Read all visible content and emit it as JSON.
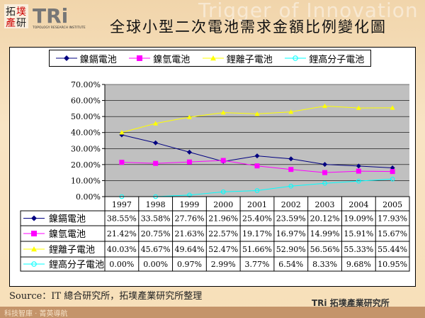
{
  "header": {
    "logo_text": "拓墣產研 TRi TOPOLOGY RESEARCH INSTITUTE",
    "watermark": "Trigger of Innovation",
    "title": "全球小型二次電池需求金額比例變化圖"
  },
  "chart_data": {
    "type": "line",
    "title": "全球小型二次電池需求金額比例變化圖",
    "categories": [
      "1997",
      "1998",
      "1999",
      "2000",
      "2001",
      "2002",
      "2003",
      "2004",
      "2005"
    ],
    "ylim": [
      0,
      70
    ],
    "yticks": [
      "0.00%",
      "10.00%",
      "20.00%",
      "30.00%",
      "40.00%",
      "50.00%",
      "60.00%",
      "70.00%"
    ],
    "grid": true,
    "legend": "top",
    "plot_background": "#c0c0c0",
    "series": [
      {
        "name": "鎳鎘電池",
        "color": "#000080",
        "marker": "diamond",
        "values": [
          38.55,
          33.58,
          27.76,
          21.96,
          25.4,
          23.59,
          20.12,
          19.09,
          17.93
        ],
        "labels": [
          "38.55%",
          "33.58%",
          "27.76%",
          "21.96%",
          "25.40%",
          "23.59%",
          "20.12%",
          "19.09%",
          "17.93%"
        ]
      },
      {
        "name": "鎳氫電池",
        "color": "#ff00ff",
        "marker": "square",
        "values": [
          21.42,
          20.75,
          21.63,
          22.57,
          19.17,
          16.97,
          14.99,
          15.91,
          15.67
        ],
        "labels": [
          "21.42%",
          "20.75%",
          "21.63%",
          "22.57%",
          "19.17%",
          "16.97%",
          "14.99%",
          "15.91%",
          "15.67%"
        ]
      },
      {
        "name": "鋰離子電池",
        "color": "#ffff00",
        "marker": "triangle",
        "values": [
          40.03,
          45.67,
          49.64,
          52.47,
          51.66,
          52.9,
          56.56,
          55.33,
          55.44
        ],
        "labels": [
          "40.03%",
          "45.67%",
          "49.64%",
          "52.47%",
          "51.66%",
          "52.90%",
          "56.56%",
          "55.33%",
          "55.44%"
        ]
      },
      {
        "name": "鋰高分子電池",
        "color": "#00ffff",
        "marker": "circle",
        "values": [
          0.0,
          0.0,
          0.97,
          2.99,
          3.77,
          6.54,
          8.33,
          9.68,
          10.95
        ],
        "labels": [
          "0.00%",
          "0.00%",
          "0.97%",
          "2.99%",
          "3.77%",
          "6.54%",
          "8.33%",
          "9.68%",
          "10.95%"
        ]
      }
    ]
  },
  "footer": {
    "source": "Source：IT 總合研究所，拓墣產業研究所整理",
    "slogan": "科技智庫 · 菁英導航",
    "brand": "TRi 拓墣產業研究所"
  }
}
